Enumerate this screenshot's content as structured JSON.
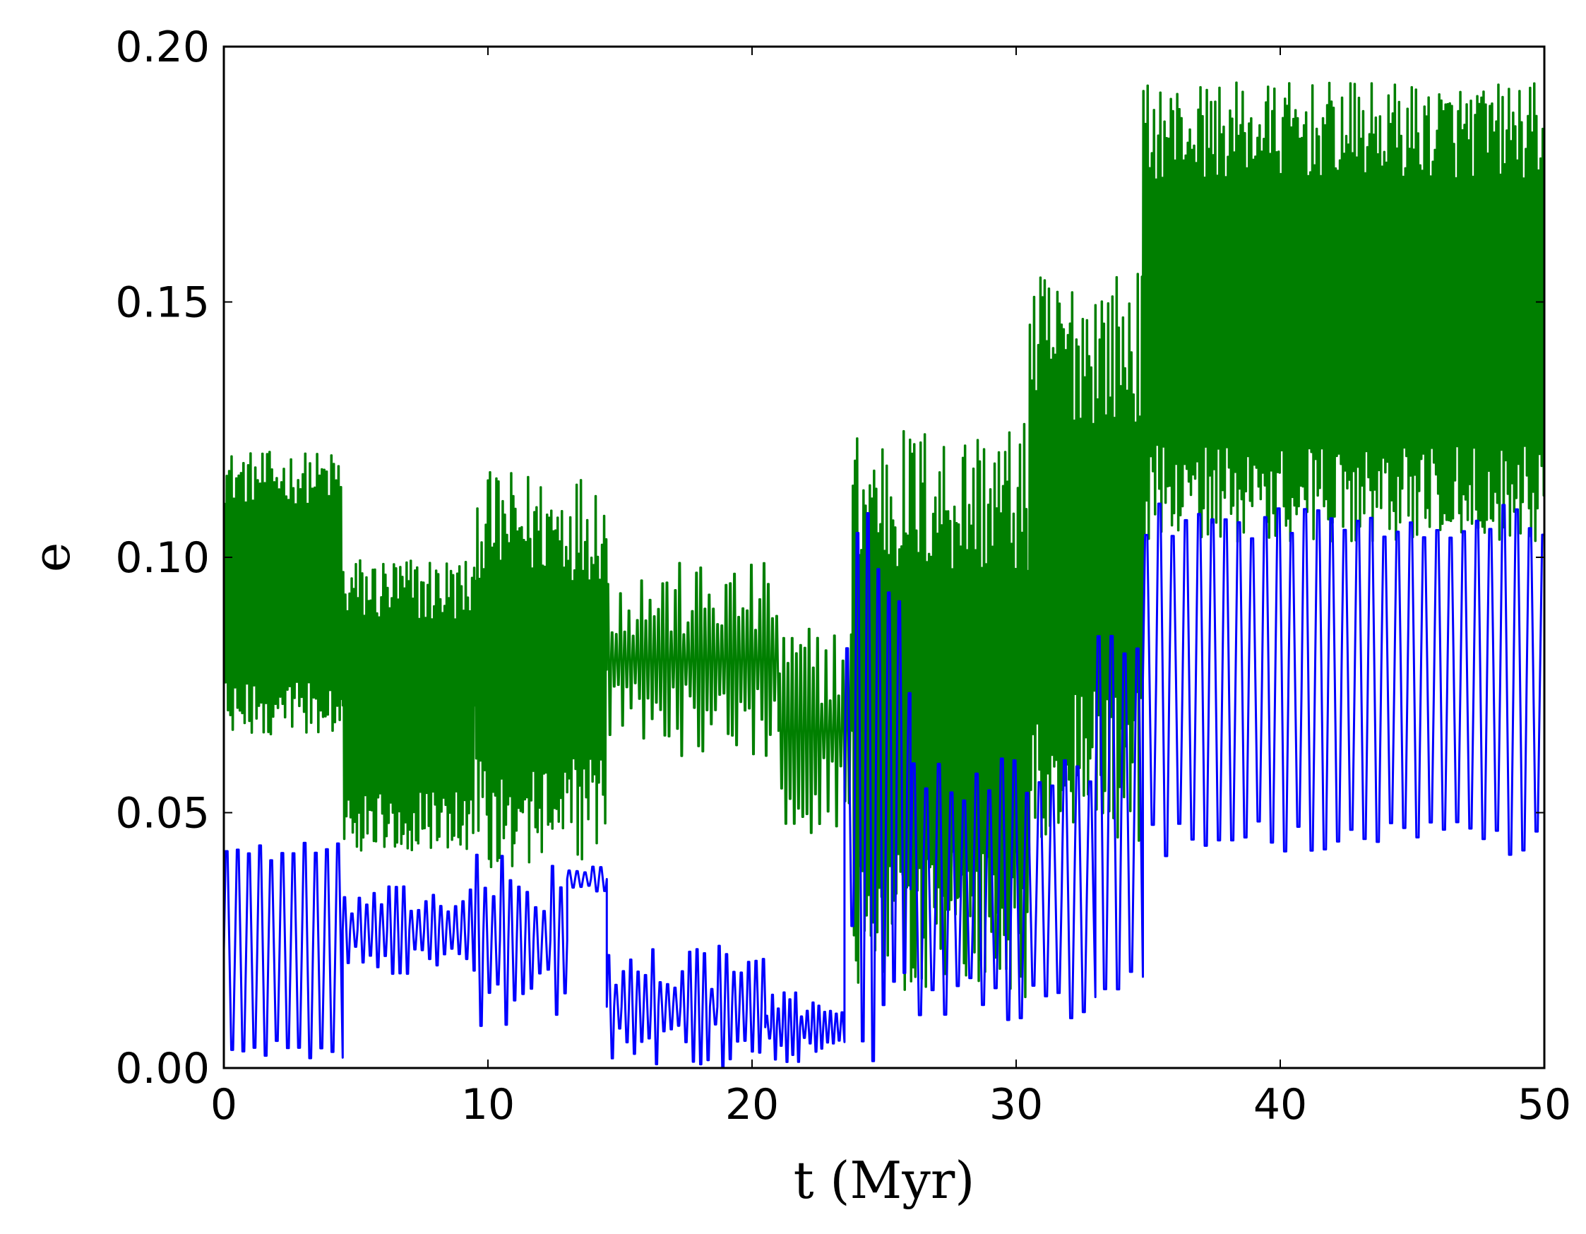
{
  "chart_data": {
    "type": "line",
    "title": "",
    "xlabel": "t (Myr)",
    "ylabel": "e",
    "xlim": [
      0,
      50
    ],
    "ylim": [
      0,
      0.2
    ],
    "xticks": [
      0,
      10,
      20,
      30,
      40,
      50
    ],
    "xtick_labels": [
      "0",
      "10",
      "20",
      "30",
      "40",
      "50"
    ],
    "yticks": [
      0,
      0.05,
      0.1,
      0.15,
      0.2
    ],
    "ytick_labels": [
      "0.00",
      "0.05",
      "0.10",
      "0.15",
      "0.20"
    ],
    "grid": false,
    "legend": "none",
    "series": [
      {
        "color": "#007f00",
        "segments": [
          {
            "t0": 0.0,
            "t1": 4.5,
            "center": 0.093,
            "amp_min": 0.02,
            "amp_max": 0.032,
            "period": 0.09
          },
          {
            "t0": 4.5,
            "t1": 9.5,
            "center": 0.071,
            "amp_min": 0.018,
            "amp_max": 0.034,
            "period": 0.08
          },
          {
            "t0": 9.5,
            "t1": 14.5,
            "center": 0.078,
            "amp_min": 0.02,
            "amp_max": 0.045,
            "period": 0.08
          },
          {
            "t0": 14.5,
            "t1": 21.0,
            "center": 0.08,
            "amp_min": 0.004,
            "amp_max": 0.022,
            "period": 0.16
          },
          {
            "t0": 21.0,
            "t1": 23.8,
            "center": 0.066,
            "amp_min": 0.006,
            "amp_max": 0.024,
            "period": 0.16
          },
          {
            "t0": 23.8,
            "t1": 30.5,
            "center": 0.07,
            "amp_min": 0.03,
            "amp_max": 0.065,
            "period": 0.08
          },
          {
            "t0": 30.5,
            "t1": 34.8,
            "center": 0.1,
            "amp_min": 0.03,
            "amp_max": 0.065,
            "period": 0.08
          },
          {
            "t0": 34.8,
            "t1": 50.0,
            "center": 0.148,
            "amp_min": 0.03,
            "amp_max": 0.052,
            "period": 0.08
          }
        ]
      },
      {
        "color": "#0000ff",
        "segments": [
          {
            "t0": 0.0,
            "t1": 4.5,
            "center": 0.023,
            "amp_min": 0.02,
            "amp_max": 0.025,
            "period": 0.42
          },
          {
            "t0": 4.5,
            "t1": 9.5,
            "center": 0.027,
            "amp_min": 0.003,
            "amp_max": 0.01,
            "period": 0.28
          },
          {
            "t0": 9.5,
            "t1": 13.0,
            "center": 0.025,
            "amp_min": 0.005,
            "amp_max": 0.02,
            "period": 0.32
          },
          {
            "t0": 13.0,
            "t1": 14.5,
            "center": 0.037,
            "amp_min": 0.001,
            "amp_max": 0.003,
            "period": 0.3
          },
          {
            "t0": 14.5,
            "t1": 20.5,
            "center": 0.012,
            "amp_min": 0.004,
            "amp_max": 0.014,
            "period": 0.28
          },
          {
            "t0": 20.5,
            "t1": 23.5,
            "center": 0.008,
            "amp_min": 0.002,
            "amp_max": 0.008,
            "period": 0.22
          },
          {
            "t0": 23.5,
            "t1": 26.0,
            "center": 0.055,
            "amp_min": 0.02,
            "amp_max": 0.065,
            "period": 0.4
          },
          {
            "t0": 26.0,
            "t1": 33.0,
            "center": 0.035,
            "amp_min": 0.02,
            "amp_max": 0.03,
            "period": 0.48
          },
          {
            "t0": 33.0,
            "t1": 34.8,
            "center": 0.05,
            "amp_min": 0.03,
            "amp_max": 0.04,
            "period": 0.48
          },
          {
            "t0": 34.8,
            "t1": 50.0,
            "center": 0.076,
            "amp_min": 0.032,
            "amp_max": 0.04,
            "period": 0.5
          }
        ]
      }
    ]
  }
}
